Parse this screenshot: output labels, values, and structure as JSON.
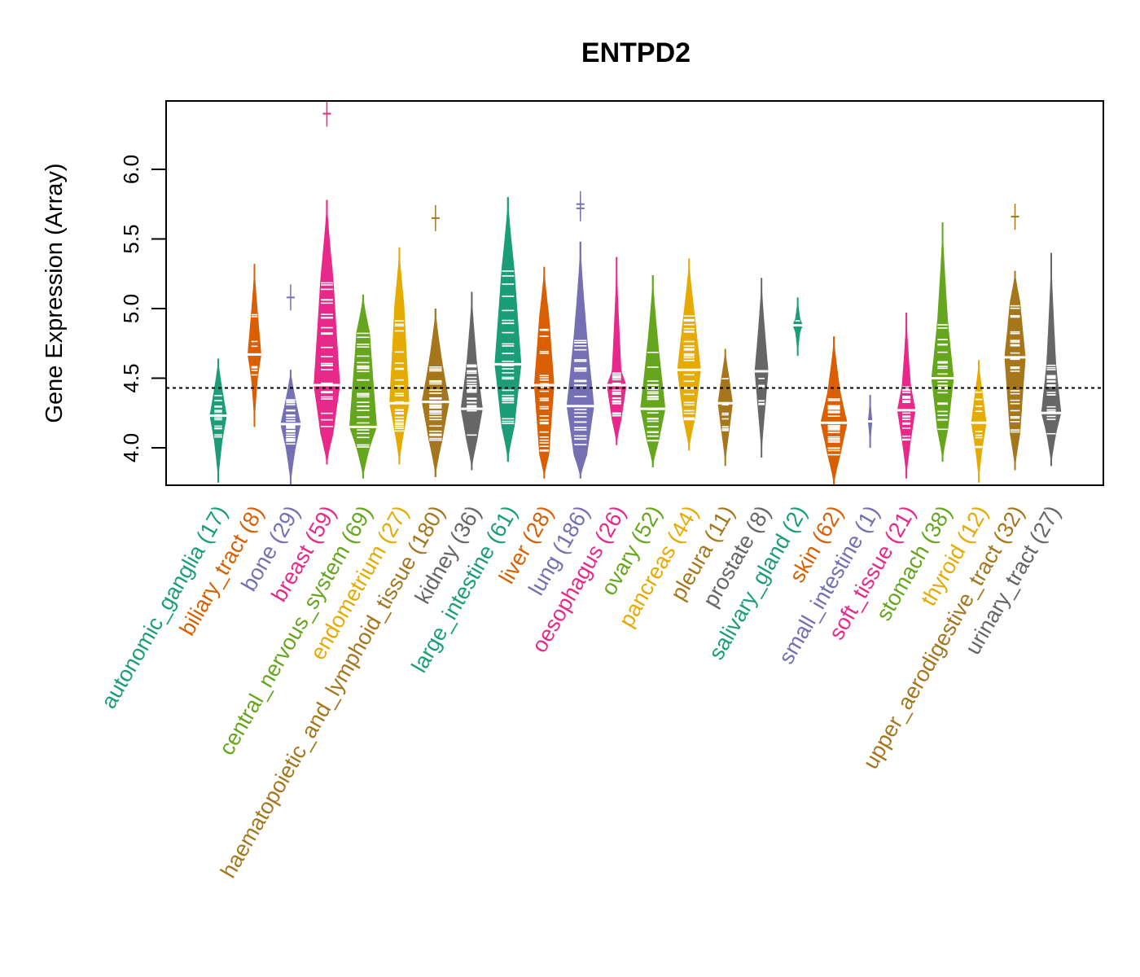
{
  "chart_data": {
    "type": "violin",
    "title": "ENTPD2",
    "xlabel": "",
    "ylabel": "Gene Expression (Array)",
    "ylim": [
      3.73,
      6.49
    ],
    "yticks": [
      "4.0",
      "4.5",
      "5.0",
      "5.5",
      "6.0"
    ],
    "ytick_values": [
      4.0,
      4.5,
      5.0,
      5.5,
      6.0
    ],
    "reference_line": 4.43,
    "grid": false,
    "legend": "none",
    "categories": [
      {
        "name": "autonomic_ganglia",
        "n": 17,
        "label": "autonomic_ganglia (17)",
        "color": "#1B9E77",
        "median": 4.23,
        "min": 3.75,
        "max": 4.64,
        "q_low": 4.05,
        "q_high": 4.42,
        "outliers": []
      },
      {
        "name": "biliary_tract",
        "n": 8,
        "label": "biliary_tract (8)",
        "color": "#D95F02",
        "median": 4.67,
        "min": 4.15,
        "max": 5.32,
        "q_low": 4.5,
        "q_high": 4.97,
        "outliers": []
      },
      {
        "name": "bone",
        "n": 29,
        "label": "bone (29)",
        "color": "#7570B3",
        "median": 4.17,
        "min": 3.73,
        "max": 4.56,
        "q_low": 4.0,
        "q_high": 4.35,
        "outliers": [
          5.08
        ]
      },
      {
        "name": "breast",
        "n": 59,
        "label": "breast (59)",
        "color": "#E7298A",
        "median": 4.45,
        "min": 3.88,
        "max": 5.78,
        "q_low": 4.1,
        "q_high": 5.22,
        "outliers": [
          6.4
        ]
      },
      {
        "name": "central_nervous_system",
        "n": 69,
        "label": "central_nervous_system (69)",
        "color": "#66A61E",
        "median": 4.15,
        "min": 3.78,
        "max": 5.1,
        "q_low": 4.0,
        "q_high": 4.83,
        "outliers": []
      },
      {
        "name": "endometrium",
        "n": 27,
        "label": "endometrium (27)",
        "color": "#E6AB02",
        "median": 4.32,
        "min": 3.88,
        "max": 5.44,
        "q_low": 4.12,
        "q_high": 5.03,
        "outliers": []
      },
      {
        "name": "haematopoietic_and_lymphoid_tissue",
        "n": 180,
        "label": "haematopoietic_and_lymphoid_tissue (180)",
        "color": "#A6761D",
        "median": 4.33,
        "min": 3.79,
        "max": 5.0,
        "q_low": 4.05,
        "q_high": 4.62,
        "outliers": [
          5.65
        ]
      },
      {
        "name": "kidney",
        "n": 36,
        "label": "kidney (36)",
        "color": "#666666",
        "median": 4.28,
        "min": 3.84,
        "max": 5.12,
        "q_low": 4.05,
        "q_high": 4.6,
        "outliers": []
      },
      {
        "name": "large_intestine",
        "n": 61,
        "label": "large_intestine (61)",
        "color": "#1B9E77",
        "median": 4.6,
        "min": 3.9,
        "max": 5.8,
        "q_low": 4.15,
        "q_high": 5.28,
        "outliers": []
      },
      {
        "name": "liver",
        "n": 28,
        "label": "liver (28)",
        "color": "#D95F02",
        "median": 4.45,
        "min": 3.78,
        "max": 5.3,
        "q_low": 3.95,
        "q_high": 4.95,
        "outliers": []
      },
      {
        "name": "lung",
        "n": 186,
        "label": "lung (186)",
        "color": "#7570B3",
        "median": 4.3,
        "min": 3.78,
        "max": 5.48,
        "q_low": 3.95,
        "q_high": 4.8,
        "outliers": [
          5.72,
          5.75
        ]
      },
      {
        "name": "oesophagus",
        "n": 26,
        "label": "oesophagus (26)",
        "color": "#E7298A",
        "median": 4.45,
        "min": 4.02,
        "max": 5.37,
        "q_low": 4.2,
        "q_high": 4.55,
        "outliers": []
      },
      {
        "name": "ovary",
        "n": 52,
        "label": "ovary (52)",
        "color": "#66A61E",
        "median": 4.28,
        "min": 3.86,
        "max": 5.24,
        "q_low": 4.05,
        "q_high": 4.7,
        "outliers": []
      },
      {
        "name": "pancreas",
        "n": 44,
        "label": "pancreas (44)",
        "color": "#E6AB02",
        "median": 4.56,
        "min": 3.98,
        "max": 5.36,
        "q_low": 4.2,
        "q_high": 4.95,
        "outliers": []
      },
      {
        "name": "pleura",
        "n": 11,
        "label": "pleura (11)",
        "color": "#A6761D",
        "median": 4.32,
        "min": 3.87,
        "max": 4.71,
        "q_low": 4.1,
        "q_high": 4.52,
        "outliers": []
      },
      {
        "name": "prostate",
        "n": 8,
        "label": "prostate (8)",
        "color": "#666666",
        "median": 4.55,
        "min": 3.93,
        "max": 5.22,
        "q_low": 4.25,
        "q_high": 4.85,
        "outliers": []
      },
      {
        "name": "salivary_gland",
        "n": 2,
        "label": "salivary_gland (2)",
        "color": "#1B9E77",
        "median": 4.88,
        "min": 4.66,
        "max": 5.08,
        "q_low": 4.83,
        "q_high": 4.93,
        "outliers": []
      },
      {
        "name": "skin",
        "n": 62,
        "label": "skin (62)",
        "color": "#D95F02",
        "median": 4.18,
        "min": 3.73,
        "max": 4.8,
        "q_low": 3.95,
        "q_high": 4.4,
        "outliers": []
      },
      {
        "name": "small_intestine",
        "n": 1,
        "label": "small_intestine (1)",
        "color": "#7570B3",
        "median": 4.19,
        "min": 4.0,
        "max": 4.38,
        "q_low": 4.19,
        "q_high": 4.19,
        "outliers": []
      },
      {
        "name": "soft_tissue",
        "n": 21,
        "label": "soft_tissue (21)",
        "color": "#E7298A",
        "median": 4.27,
        "min": 3.78,
        "max": 4.97,
        "q_low": 4.05,
        "q_high": 4.45,
        "outliers": []
      },
      {
        "name": "stomach",
        "n": 38,
        "label": "stomach (38)",
        "color": "#66A61E",
        "median": 4.5,
        "min": 3.9,
        "max": 5.62,
        "q_low": 4.13,
        "q_high": 4.9,
        "outliers": []
      },
      {
        "name": "thyroid",
        "n": 12,
        "label": "thyroid (12)",
        "color": "#E6AB02",
        "median": 4.18,
        "min": 3.75,
        "max": 4.63,
        "q_low": 4.0,
        "q_high": 4.4,
        "outliers": []
      },
      {
        "name": "upper_aerodigestive_tract",
        "n": 32,
        "label": "upper_aerodigestive_tract (32)",
        "color": "#A6761D",
        "median": 4.65,
        "min": 3.84,
        "max": 5.27,
        "q_low": 4.1,
        "q_high": 5.05,
        "outliers": [
          5.66
        ]
      },
      {
        "name": "urinary_tract",
        "n": 27,
        "label": "urinary_tract (27)",
        "color": "#666666",
        "median": 4.25,
        "min": 3.87,
        "max": 5.4,
        "q_low": 4.1,
        "q_high": 4.6,
        "outliers": []
      }
    ]
  }
}
